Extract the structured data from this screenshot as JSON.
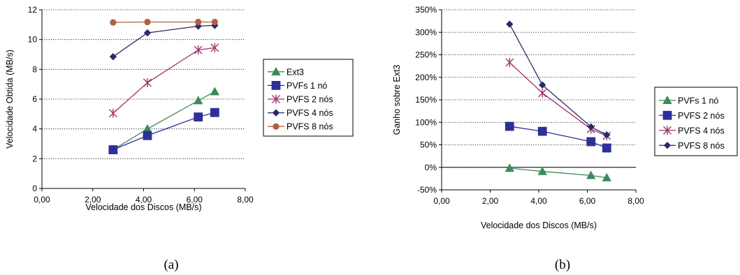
{
  "chart_data": [
    {
      "type": "line",
      "caption": "(a)",
      "xlabel": "Velocidade dos Discos (MB/s)",
      "ylabel": "Velocidade Obtida (MB/s)",
      "xlim": [
        0,
        8
      ],
      "ylim": [
        0,
        12
      ],
      "xticks": [
        0,
        2,
        4,
        6,
        8
      ],
      "yticks": [
        0,
        2,
        4,
        6,
        8,
        10,
        12
      ],
      "xtick_labels": [
        "0,00",
        "2,00",
        "4,00",
        "6,00",
        "8,00"
      ],
      "ytick_labels": [
        "0",
        "2",
        "4",
        "6",
        "8",
        "10",
        "12"
      ],
      "grid": "horizontal-dotted",
      "legend_position": "right",
      "x": [
        2.8,
        4.15,
        6.15,
        6.8
      ],
      "series": [
        {
          "name": "Ext3",
          "values": [
            2.6,
            4.0,
            5.9,
            6.5
          ],
          "color": "#3c8a5a",
          "marker": "triangle"
        },
        {
          "name": "PVFs 1 nó",
          "values": [
            2.6,
            3.55,
            4.8,
            5.1
          ],
          "color": "#2f2f9a",
          "marker": "square"
        },
        {
          "name": "PVFS 2 nós",
          "values": [
            5.05,
            7.1,
            9.3,
            9.45
          ],
          "color": "#a0356a",
          "marker": "star"
        },
        {
          "name": "PVFS 4 nós",
          "values": [
            8.85,
            10.45,
            10.9,
            10.95
          ],
          "color": "#2a2a6a",
          "marker": "diamond"
        },
        {
          "name": "PVFS 8 nós",
          "values": [
            11.15,
            11.18,
            11.18,
            11.18
          ],
          "color": "#b06040",
          "marker": "circle"
        }
      ]
    },
    {
      "type": "line",
      "caption": "(b)",
      "xlabel": "Velocidade dos Discos (MB/s)",
      "ylabel": "Ganho sobre Ext3",
      "xlim": [
        0,
        8
      ],
      "ylim": [
        -50,
        350
      ],
      "xticks": [
        0,
        2,
        4,
        6,
        8
      ],
      "yticks": [
        -50,
        0,
        50,
        100,
        150,
        200,
        250,
        300,
        350
      ],
      "xtick_labels": [
        "0,00",
        "2,00",
        "4,00",
        "6,00",
        "8,00"
      ],
      "ytick_labels": [
        "-50%",
        "0%",
        "50%",
        "100%",
        "150%",
        "200%",
        "250%",
        "300%",
        "350%"
      ],
      "grid": "horizontal-dotted",
      "legend_position": "right",
      "x": [
        2.8,
        4.15,
        6.15,
        6.8
      ],
      "series": [
        {
          "name": "PVFs 1 nó",
          "values": [
            -2,
            -9,
            -18,
            -23
          ],
          "color": "#3c8a5a",
          "marker": "triangle"
        },
        {
          "name": "PVFS 2 nós",
          "values": [
            91,
            80,
            57,
            43
          ],
          "color": "#2f2f9a",
          "marker": "square"
        },
        {
          "name": "PVFS 4 nós",
          "values": [
            233,
            165,
            85,
            70
          ],
          "color": "#a0356a",
          "marker": "star"
        },
        {
          "name": "PVFS 8 nós",
          "values": [
            318,
            183,
            90,
            72
          ],
          "color": "#2a2a6a",
          "marker": "diamond"
        }
      ]
    }
  ]
}
